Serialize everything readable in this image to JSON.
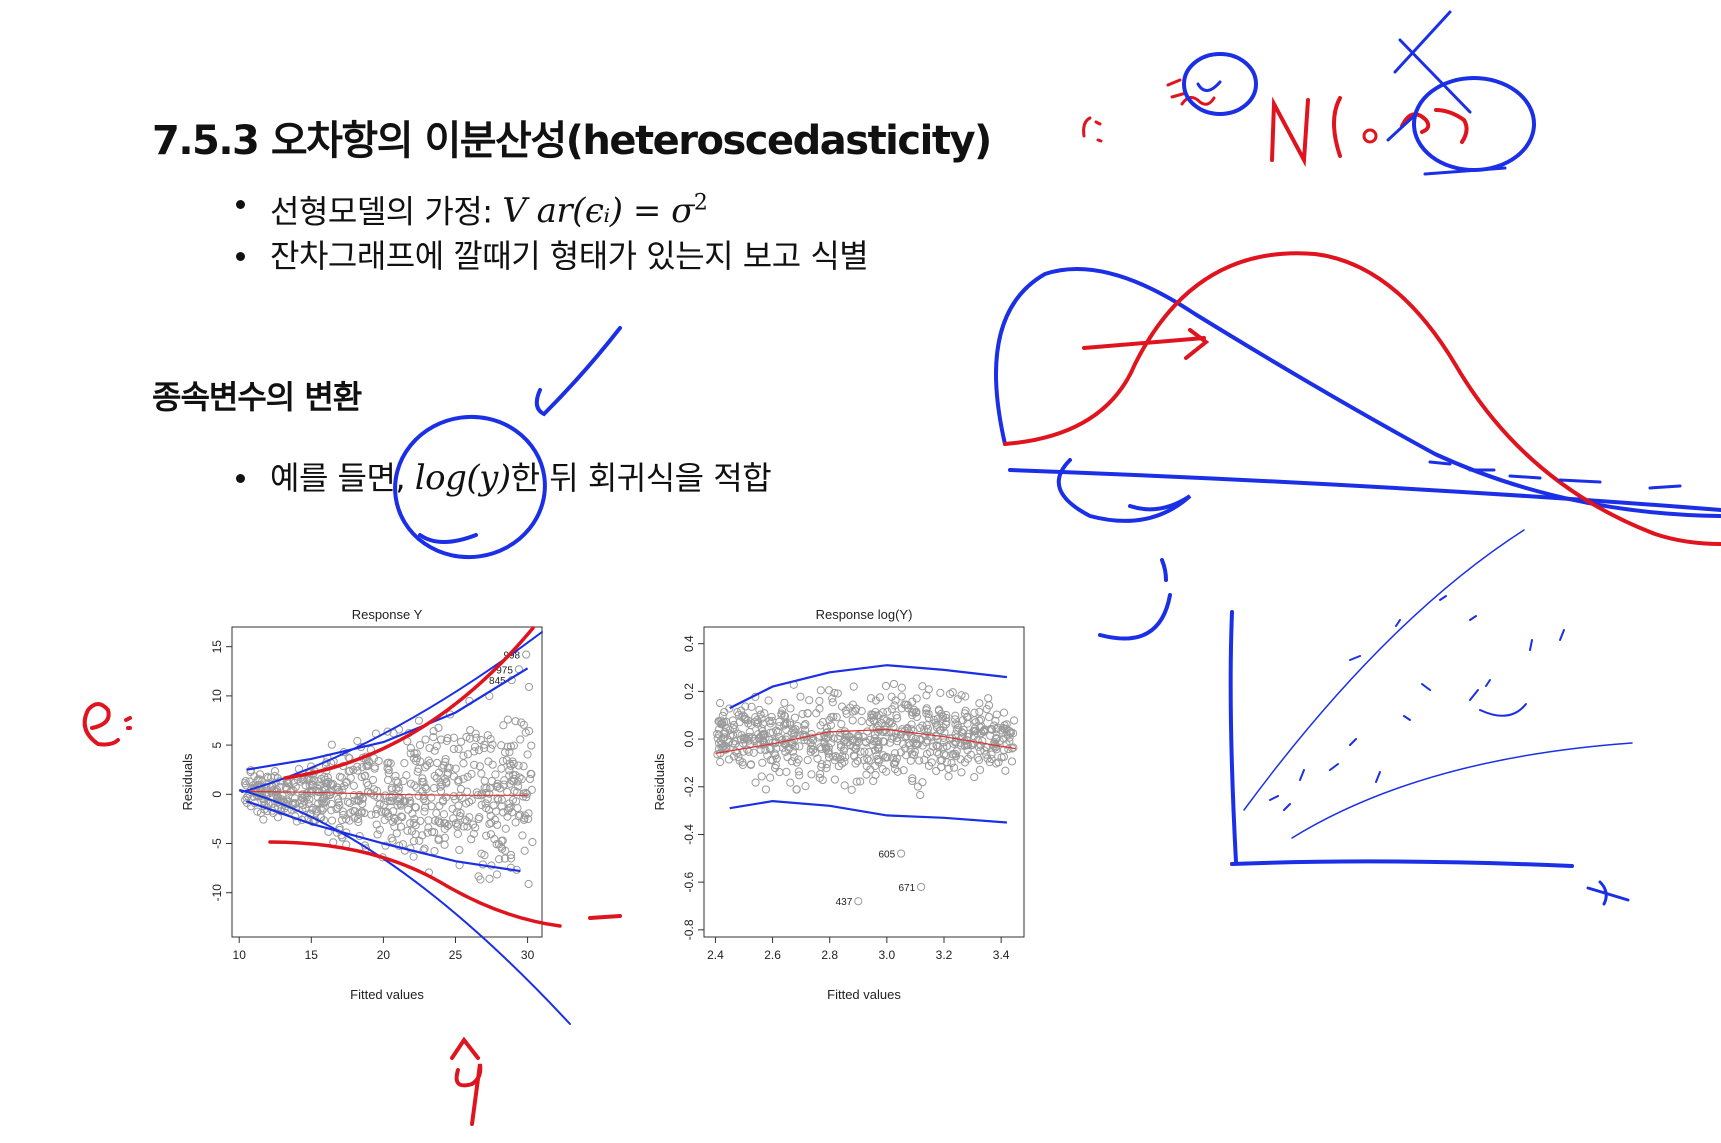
{
  "slide": {
    "title": "7.5.3 오차항의 이분산성(heteroscedasticity)",
    "bullets1": [
      {
        "text": "선형모델의 가정: ",
        "math": "V ar(ϵᵢ) = σ",
        "sup": "2"
      },
      {
        "text": "잔차그래프에 깔때기 형태가 있는지 보고 식별"
      }
    ],
    "subheading": "종속변수의 변환",
    "bullets2": [
      {
        "pre": "예를 들면, ",
        "math": "log(y)",
        "post": "한 뒤 회귀식을 적합"
      }
    ]
  },
  "chart_data": [
    {
      "type": "scatter",
      "title": "Response Y",
      "xlabel": "Fitted values",
      "ylabel": "Residuals",
      "xlim": [
        9.5,
        31
      ],
      "ylim": [
        -14.5,
        17
      ],
      "xticks": [
        10,
        15,
        20,
        25,
        30
      ],
      "yticks": [
        -10,
        -5,
        0,
        5,
        10,
        15
      ],
      "outlier_labels": [
        {
          "label": "998",
          "x": 29.9,
          "y": 14.2
        },
        {
          "label": "975",
          "x": 29.4,
          "y": 12.7
        },
        {
          "label": "845",
          "x": 28.9,
          "y": 11.6
        }
      ],
      "smooth_line": {
        "x": [
          10,
          15,
          20,
          25,
          30
        ],
        "y": [
          0.3,
          0.2,
          0.0,
          -0.1,
          -0.1
        ]
      },
      "upper_band": {
        "x": [
          10.5,
          15,
          20,
          25,
          30
        ],
        "y": [
          2.5,
          3.6,
          5.3,
          8.3,
          12.8
        ]
      },
      "lower_band": {
        "x": [
          10.5,
          15,
          20,
          25,
          29.5
        ],
        "y": [
          -0.7,
          -3.0,
          -5.0,
          -6.8,
          -7.8
        ]
      }
    },
    {
      "type": "scatter",
      "title": "Response log(Y)",
      "xlabel": "Fitted values",
      "ylabel": "Residuals",
      "xlim": [
        2.36,
        3.48
      ],
      "ylim": [
        -0.83,
        0.47
      ],
      "xticks": [
        2.4,
        2.6,
        2.8,
        3.0,
        3.2,
        3.4
      ],
      "yticks": [
        -0.8,
        -0.6,
        -0.4,
        -0.2,
        0.0,
        0.2,
        0.4
      ],
      "outlier_labels": [
        {
          "label": "605",
          "x": 3.05,
          "y": -0.48
        },
        {
          "label": "671",
          "x": 3.12,
          "y": -0.62
        },
        {
          "label": "437",
          "x": 2.9,
          "y": -0.68
        }
      ],
      "smooth_line": {
        "x": [
          2.4,
          2.6,
          2.8,
          3.0,
          3.2,
          3.45
        ],
        "y": [
          -0.06,
          -0.02,
          0.03,
          0.04,
          0.01,
          -0.04
        ]
      },
      "upper_band": {
        "x": [
          2.45,
          2.6,
          2.8,
          3.0,
          3.2,
          3.42
        ],
        "y": [
          0.13,
          0.22,
          0.28,
          0.31,
          0.29,
          0.26
        ]
      },
      "lower_band": {
        "x": [
          2.45,
          2.6,
          2.8,
          3.0,
          3.2,
          3.42
        ],
        "y": [
          -0.29,
          -0.26,
          -0.28,
          -0.32,
          -0.33,
          -0.35
        ]
      }
    }
  ],
  "annotations": {
    "top_right": "εᵢ ~ N(0, σ²)",
    "e_label": "eᵢ",
    "yhat_label": "ŷ",
    "y_label": "y",
    "x_label": "x"
  },
  "colors": {
    "ink_blue": "#1a2fe6",
    "ink_red": "#e0141e",
    "points": "#9a9a9a",
    "smooth": "#e03030"
  }
}
